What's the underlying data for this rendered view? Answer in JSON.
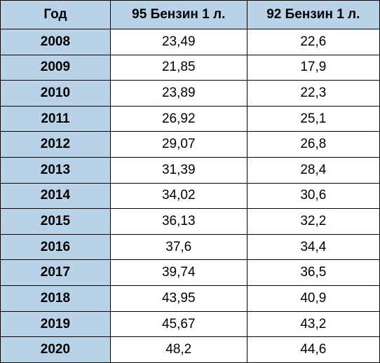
{
  "table": {
    "type": "table",
    "columns": [
      "Год",
      "95 Бензин 1 л.",
      "92 Бензин 1 л."
    ],
    "column_widths_pct": [
      29,
      36,
      35
    ],
    "header_bg": "#b9d2e8",
    "year_cell_bg": "#b9d2e8",
    "value_cell_bg": "#ffffff",
    "border_color": "#000000",
    "text_color": "#000000",
    "font_family": "Arial",
    "header_fontsize": 19,
    "cell_fontsize": 19,
    "year_font_weight": "bold",
    "rows": [
      {
        "year": "2008",
        "v95": "23,49",
        "v92": "22,6"
      },
      {
        "year": "2009",
        "v95": "21,85",
        "v92": "17,9"
      },
      {
        "year": "2010",
        "v95": "23,89",
        "v92": "22,3"
      },
      {
        "year": "2011",
        "v95": "26,92",
        "v92": "25,1"
      },
      {
        "year": "2012",
        "v95": "29,07",
        "v92": "26,8"
      },
      {
        "year": "2013",
        "v95": "31,39",
        "v92": "28,4"
      },
      {
        "year": "2014",
        "v95": "34,02",
        "v92": "30,6"
      },
      {
        "year": "2015",
        "v95": "36,13",
        "v92": "32,2"
      },
      {
        "year": "2016",
        "v95": "37,6",
        "v92": "34,4"
      },
      {
        "year": "2017",
        "v95": "39,74",
        "v92": "36,5"
      },
      {
        "year": "2018",
        "v95": "43,95",
        "v92": "40,9"
      },
      {
        "year": "2019",
        "v95": "45,67",
        "v92": "43,2"
      },
      {
        "year": "2020",
        "v95": "48,2",
        "v92": "44,6"
      }
    ]
  }
}
